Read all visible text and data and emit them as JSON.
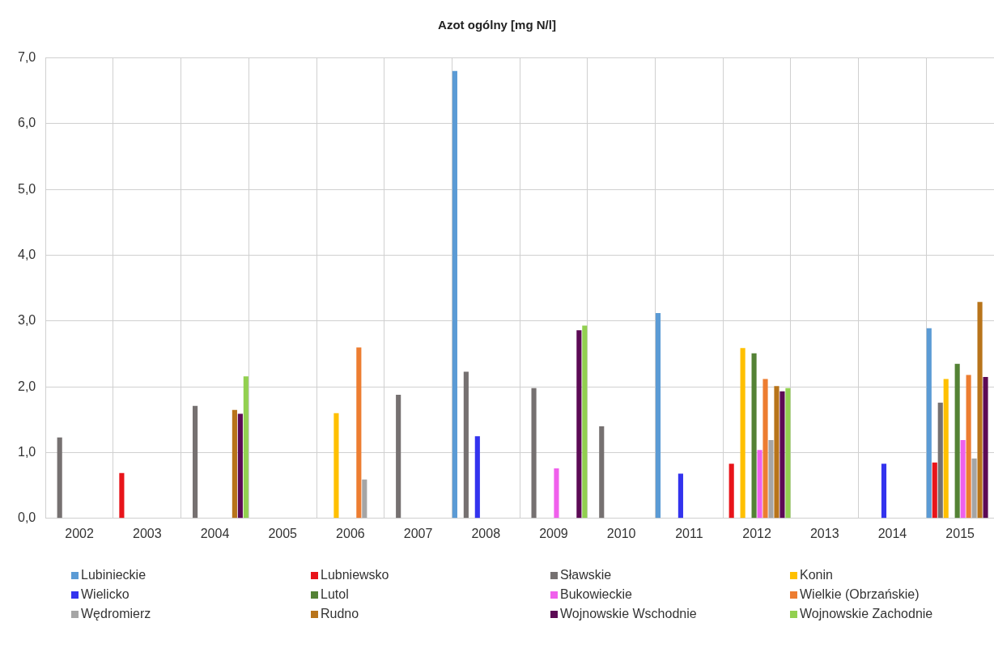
{
  "chart_data": {
    "type": "bar",
    "title": "Azot ogólny  [mg N/l]",
    "categories": [
      "2002",
      "2003",
      "2004",
      "2005",
      "2006",
      "2007",
      "2008",
      "2009",
      "2010",
      "2011",
      "2012",
      "2013",
      "2014",
      "2015"
    ],
    "series": [
      {
        "name": "Lubinieckie",
        "color": "#5b9bd5",
        "values": [
          null,
          null,
          null,
          null,
          null,
          null,
          6.8,
          null,
          null,
          3.12,
          null,
          null,
          null,
          2.89
        ]
      },
      {
        "name": "Lubniewsko",
        "color": "#e8141a",
        "values": [
          null,
          0.69,
          null,
          null,
          null,
          null,
          null,
          null,
          null,
          null,
          0.83,
          null,
          null,
          0.85
        ]
      },
      {
        "name": "Sławskie",
        "color": "#767171",
        "values": [
          1.23,
          null,
          1.71,
          null,
          null,
          1.88,
          2.23,
          1.98,
          1.4,
          null,
          null,
          null,
          null,
          1.76
        ]
      },
      {
        "name": "Konin",
        "color": "#ffc000",
        "values": [
          null,
          null,
          null,
          null,
          1.6,
          null,
          null,
          null,
          null,
          null,
          2.59,
          null,
          null,
          2.12
        ]
      },
      {
        "name": "Wielicko",
        "color": "#3333ee",
        "values": [
          null,
          null,
          null,
          null,
          null,
          null,
          1.25,
          null,
          null,
          0.68,
          null,
          null,
          0.83,
          null
        ]
      },
      {
        "name": "Lutol",
        "color": "#548235",
        "values": [
          null,
          null,
          null,
          null,
          null,
          null,
          null,
          null,
          null,
          null,
          2.51,
          null,
          null,
          2.35
        ]
      },
      {
        "name": "Bukowieckie",
        "color": "#f060ec",
        "values": [
          null,
          null,
          null,
          null,
          null,
          null,
          null,
          0.76,
          null,
          null,
          1.04,
          null,
          null,
          1.19
        ]
      },
      {
        "name": "Wielkie (Obrzańskie)",
        "color": "#ed7d31",
        "values": [
          null,
          null,
          null,
          null,
          2.6,
          null,
          null,
          null,
          null,
          null,
          2.12,
          null,
          null,
          2.18
        ]
      },
      {
        "name": "Wędromierz",
        "color": "#a5a5a5",
        "values": [
          null,
          null,
          null,
          null,
          0.59,
          null,
          null,
          null,
          null,
          null,
          1.19,
          null,
          null,
          0.91
        ]
      },
      {
        "name": "Rudno",
        "color": "#b8741a",
        "values": [
          null,
          null,
          1.65,
          null,
          null,
          null,
          null,
          null,
          null,
          null,
          2.01,
          null,
          null,
          3.29
        ]
      },
      {
        "name": "Wojnowskie Wschodnie",
        "color": "#5c0a55",
        "values": [
          null,
          null,
          1.59,
          null,
          null,
          null,
          null,
          2.86,
          null,
          null,
          1.93,
          null,
          null,
          2.15
        ]
      },
      {
        "name": "Wojnowskie Zachodnie",
        "color": "#92d050",
        "values": [
          null,
          null,
          2.16,
          null,
          null,
          null,
          null,
          2.93,
          null,
          null,
          1.98,
          null,
          null,
          null
        ]
      }
    ],
    "ylim": [
      0,
      7
    ],
    "yticks": [
      {
        "value": 0,
        "label": "0,0"
      },
      {
        "value": 1,
        "label": "1,0"
      },
      {
        "value": 2,
        "label": "2,0"
      },
      {
        "value": 3,
        "label": "3,0"
      },
      {
        "value": 4,
        "label": "4,0"
      },
      {
        "value": 5,
        "label": "5,0"
      },
      {
        "value": 6,
        "label": "6,0"
      },
      {
        "value": 7,
        "label": "7,0"
      }
    ],
    "grid": true,
    "legend": "bottom"
  }
}
